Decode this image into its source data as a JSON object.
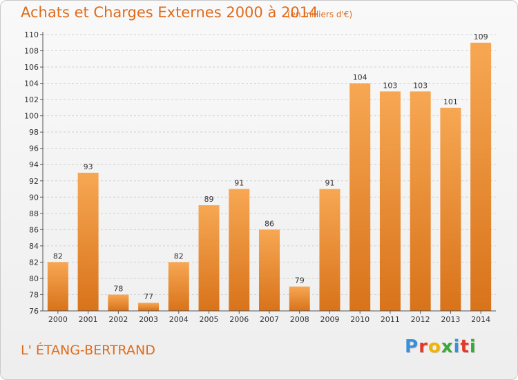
{
  "header": {
    "title": "Achats et Charges Externes 2000 à 2014",
    "subtitle": "(en milliers d'€)"
  },
  "footer": {
    "place": "L' ÉTANG-BERTRAND",
    "brand": "Proxiti",
    "brand_colors": [
      "#3a8fd8",
      "#e23a2a",
      "#f0b400",
      "#3aa83a",
      "#3a8fd8",
      "#e23a2a",
      "#3aa83a"
    ]
  },
  "colors": {
    "accent": "#e06a1a",
    "bar_light": "#f7a753",
    "bar_dark": "#d8731a",
    "grid": "#cfcfcf"
  },
  "chart_data": {
    "type": "bar",
    "title": "Achats et Charges Externes 2000 à 2014",
    "subtitle": "(en milliers d'€)",
    "categories": [
      "2000",
      "2001",
      "2002",
      "2003",
      "2004",
      "2005",
      "2006",
      "2007",
      "2008",
      "2009",
      "2010",
      "2011",
      "2012",
      "2013",
      "2014"
    ],
    "values": [
      82,
      93,
      78,
      77,
      82,
      89,
      91,
      86,
      79,
      91,
      104,
      103,
      103,
      101,
      109
    ],
    "ylim": [
      76,
      110
    ],
    "yticks": [
      76,
      78,
      80,
      82,
      84,
      86,
      88,
      90,
      92,
      94,
      96,
      98,
      100,
      102,
      104,
      106,
      108,
      110
    ],
    "grid": true,
    "legend": "none"
  }
}
